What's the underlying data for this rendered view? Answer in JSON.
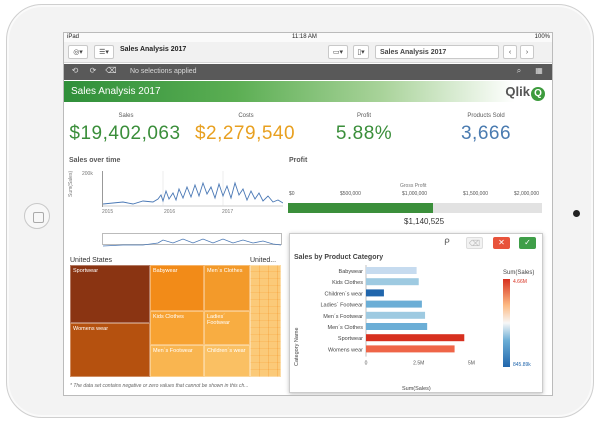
{
  "status": {
    "device": "iPad",
    "time": "11:18 AM",
    "battery": "100%"
  },
  "toolbar": {
    "app_title": "Sales Analysis 2017",
    "sheet_title": "Sales Analysis 2017"
  },
  "selections": {
    "text": "No selections applied"
  },
  "header": {
    "title": "Sales Analysis 2017",
    "logo_text": "Qlik"
  },
  "kpis": [
    {
      "label": "Sales",
      "value": "$19,402,063",
      "color": "#3a8e3a"
    },
    {
      "label": "Costs",
      "value": "$2,279,540",
      "color": "#e8a020"
    },
    {
      "label": "Profit",
      "value": "5.88%",
      "color": "#3a8e3a"
    },
    {
      "label": "Products Sold",
      "value": "3,666",
      "color": "#4a7bb0"
    }
  ],
  "sales_over_time": {
    "title": "Sales over time",
    "ylabel": "Sum(Sales)",
    "ytick": "200k",
    "xticks": [
      "2015",
      "2016",
      "2017"
    ]
  },
  "profit": {
    "title": "Profit",
    "gauge_label": "Gross Profit",
    "scale": [
      "$0",
      "$500,000",
      "$1,000,000",
      "$1,500,000",
      "$2,000,000"
    ],
    "value": "$1,140,525",
    "value_fraction": 0.57
  },
  "treemap": {
    "title": "United States",
    "title2": "United...",
    "cells": [
      "Sportwear",
      "Babywear",
      "Men´s Clothes",
      "Womens wear",
      "Kids Clothes",
      "Ladies´ Footwear",
      "Men´s Footwear",
      "Children´s wear"
    ]
  },
  "footnote": "* The data set contains negative or zero values that cannot be shown in this ch...",
  "product_chart": {
    "title": "Sales by Product Category",
    "ylabel": "Category Name",
    "xlabel": "Sum(Sales)",
    "legend_title": "Sum(Sales)",
    "legend_max": "4.66M",
    "legend_min": "845.89k",
    "xticks": [
      "0",
      "2.5M",
      "5M"
    ]
  },
  "chart_data": {
    "type": "bar",
    "title": "Sales by Product Category",
    "xlabel": "Sum(Sales)",
    "ylabel": "Category Name",
    "categories": [
      "Babywear",
      "Kids Clothes",
      "Children´s wear",
      "Ladies´ Footwear",
      "Men´s Footwear",
      "Men´s Clothes",
      "Sportwear",
      "Womens wear"
    ],
    "values": [
      2.4,
      2.5,
      0.85,
      2.65,
      2.8,
      2.9,
      4.66,
      4.2
    ],
    "colors": [
      "#c6dbef",
      "#9ecae1",
      "#2166ac",
      "#6baed6",
      "#9ecae1",
      "#6baed6",
      "#d7301f",
      "#ef6548"
    ],
    "xlim": [
      0,
      5.5
    ]
  }
}
